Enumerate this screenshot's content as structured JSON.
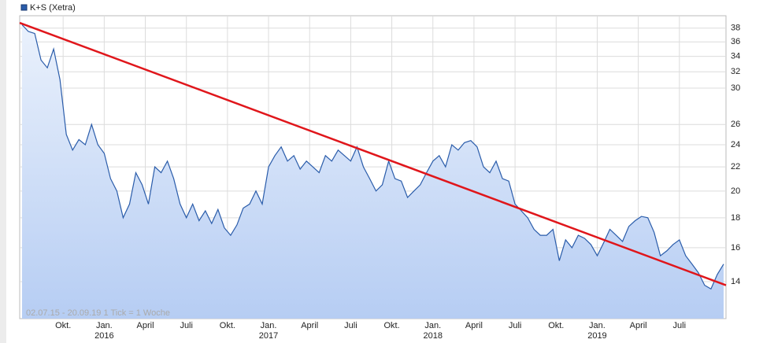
{
  "chart_data": {
    "type": "line",
    "legend_label": "K+S (Xetra)",
    "footnote": "02.07.15 - 20.09.19   1 Tick = 1 Woche",
    "series": [
      {
        "name": "K+S (Xetra)",
        "color": "#2a5caa",
        "values": [
          38.5,
          37.5,
          37.2,
          33.5,
          32.5,
          35,
          31,
          25,
          23.5,
          24.5,
          24,
          26,
          24,
          23.2,
          21,
          20,
          18,
          19,
          21.5,
          20.5,
          19,
          22,
          21.5,
          22.5,
          21,
          19,
          18,
          19,
          17.8,
          18.5,
          17.6,
          18.6,
          17.3,
          16.8,
          17.5,
          18.7,
          19,
          20,
          19,
          22,
          23,
          23.8,
          22.5,
          23,
          21.8,
          22.5,
          22,
          21.5,
          23,
          22.5,
          23.5,
          23,
          22.5,
          23.8,
          22,
          21,
          20,
          20.5,
          22.5,
          21,
          20.8,
          19.5,
          20,
          20.5,
          21.5,
          22.5,
          23,
          22,
          24,
          23.5,
          24.2,
          24.4,
          23.8,
          22,
          21.5,
          22.5,
          21,
          20.8,
          19,
          18.5,
          18,
          17.2,
          16.8,
          16.8,
          17.2,
          15.2,
          16.5,
          16,
          16.8,
          16.6,
          16.2,
          15.5,
          16.3,
          17.2,
          16.8,
          16.4,
          17.4,
          17.8,
          18.1,
          18.0,
          17.0,
          15.5,
          15.8,
          16.2,
          16.5,
          15.5,
          15,
          14.5,
          13.8,
          13.6,
          14.4,
          15.0
        ]
      }
    ],
    "trend_line": {
      "color": "#e0161b",
      "values": [
        38.8,
        13.8
      ]
    },
    "log_y": true,
    "grid": true,
    "xlim": [
      0,
      111
    ],
    "ylim": [
      12.1,
      39.9
    ],
    "yticks": [
      14,
      16,
      18,
      20,
      22,
      24,
      26,
      30,
      32,
      34,
      36,
      38
    ],
    "xticks": [
      {
        "value": 6.5,
        "label": "Okt."
      },
      {
        "value": 13,
        "label": "Jan."
      },
      {
        "value": 19.5,
        "label": "April"
      },
      {
        "value": 26,
        "label": "Juli"
      },
      {
        "value": 32.5,
        "label": "Okt."
      },
      {
        "value": 39,
        "label": "Jan."
      },
      {
        "value": 45.5,
        "label": "April"
      },
      {
        "value": 52,
        "label": "Juli"
      },
      {
        "value": 58.5,
        "label": "Okt."
      },
      {
        "value": 65,
        "label": "Jan."
      },
      {
        "value": 71.5,
        "label": "April"
      },
      {
        "value": 78,
        "label": "Juli"
      },
      {
        "value": 84.5,
        "label": "Okt."
      },
      {
        "value": 91,
        "label": "Jan."
      },
      {
        "value": 97.5,
        "label": "April"
      },
      {
        "value": 104,
        "label": "Juli"
      }
    ],
    "year_labels": [
      {
        "value": 13,
        "label": "2016"
      },
      {
        "value": 39,
        "label": "2017"
      },
      {
        "value": 65,
        "label": "2018"
      },
      {
        "value": 91,
        "label": "2019"
      }
    ]
  }
}
